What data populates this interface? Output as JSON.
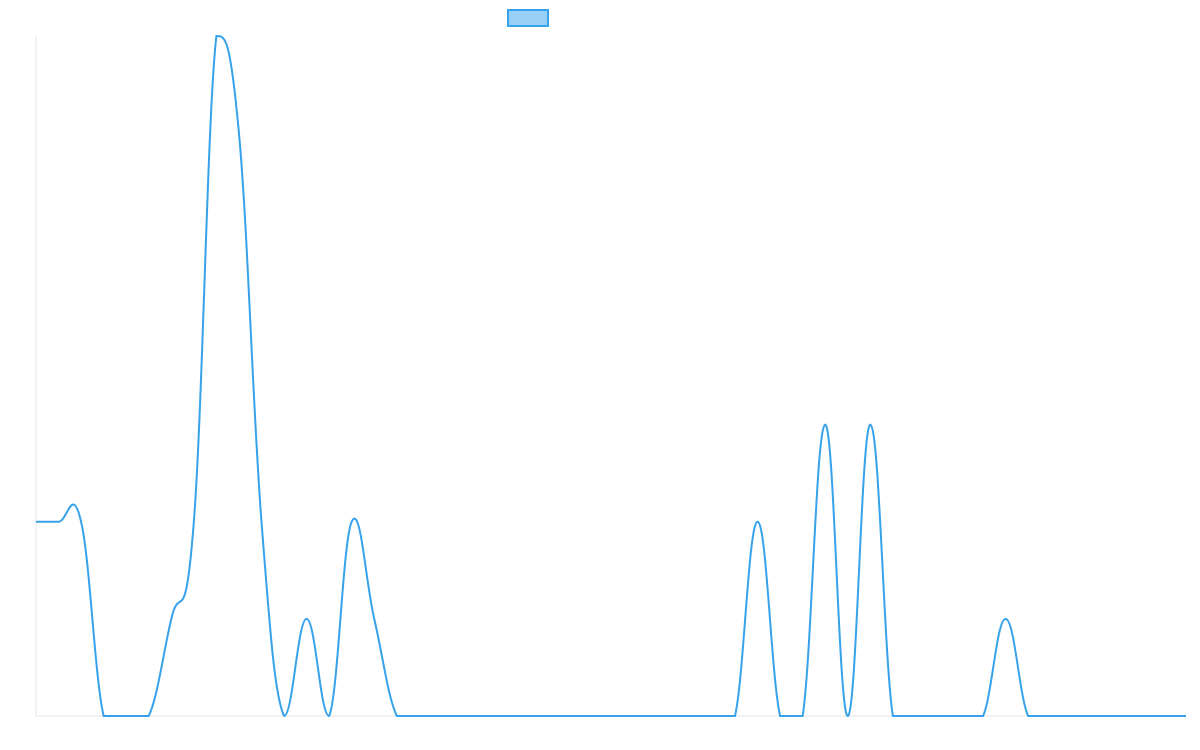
{
  "chart_data": {
    "type": "line",
    "categories": [
      null,
      null,
      null,
      null,
      null,
      null,
      null,
      null,
      null,
      null,
      null,
      null,
      null,
      null,
      null,
      null,
      null,
      null,
      null,
      null,
      null,
      null,
      null,
      null,
      null,
      null,
      null,
      null,
      null,
      null,
      null,
      null,
      null,
      null,
      null,
      null,
      null,
      null,
      null,
      null,
      null,
      null,
      null,
      null,
      null,
      null,
      null,
      null,
      null,
      null,
      null,
      null
    ],
    "series": [
      {
        "color": "#36a2eb",
        "fill": "#9ad0f5",
        "values": [
          2,
          2,
          2,
          0,
          0,
          0,
          1,
          2,
          7,
          6,
          2,
          0,
          1,
          0,
          2,
          1,
          0,
          0,
          0,
          0,
          0,
          0,
          0,
          0,
          0,
          0,
          0,
          0,
          0,
          0,
          0,
          0,
          2,
          0,
          0,
          3,
          0,
          3,
          0,
          0,
          0,
          0,
          0,
          1,
          0,
          0,
          0,
          0,
          0,
          0,
          0,
          0
        ]
      }
    ],
    "ylim": [
      0,
      7
    ]
  }
}
